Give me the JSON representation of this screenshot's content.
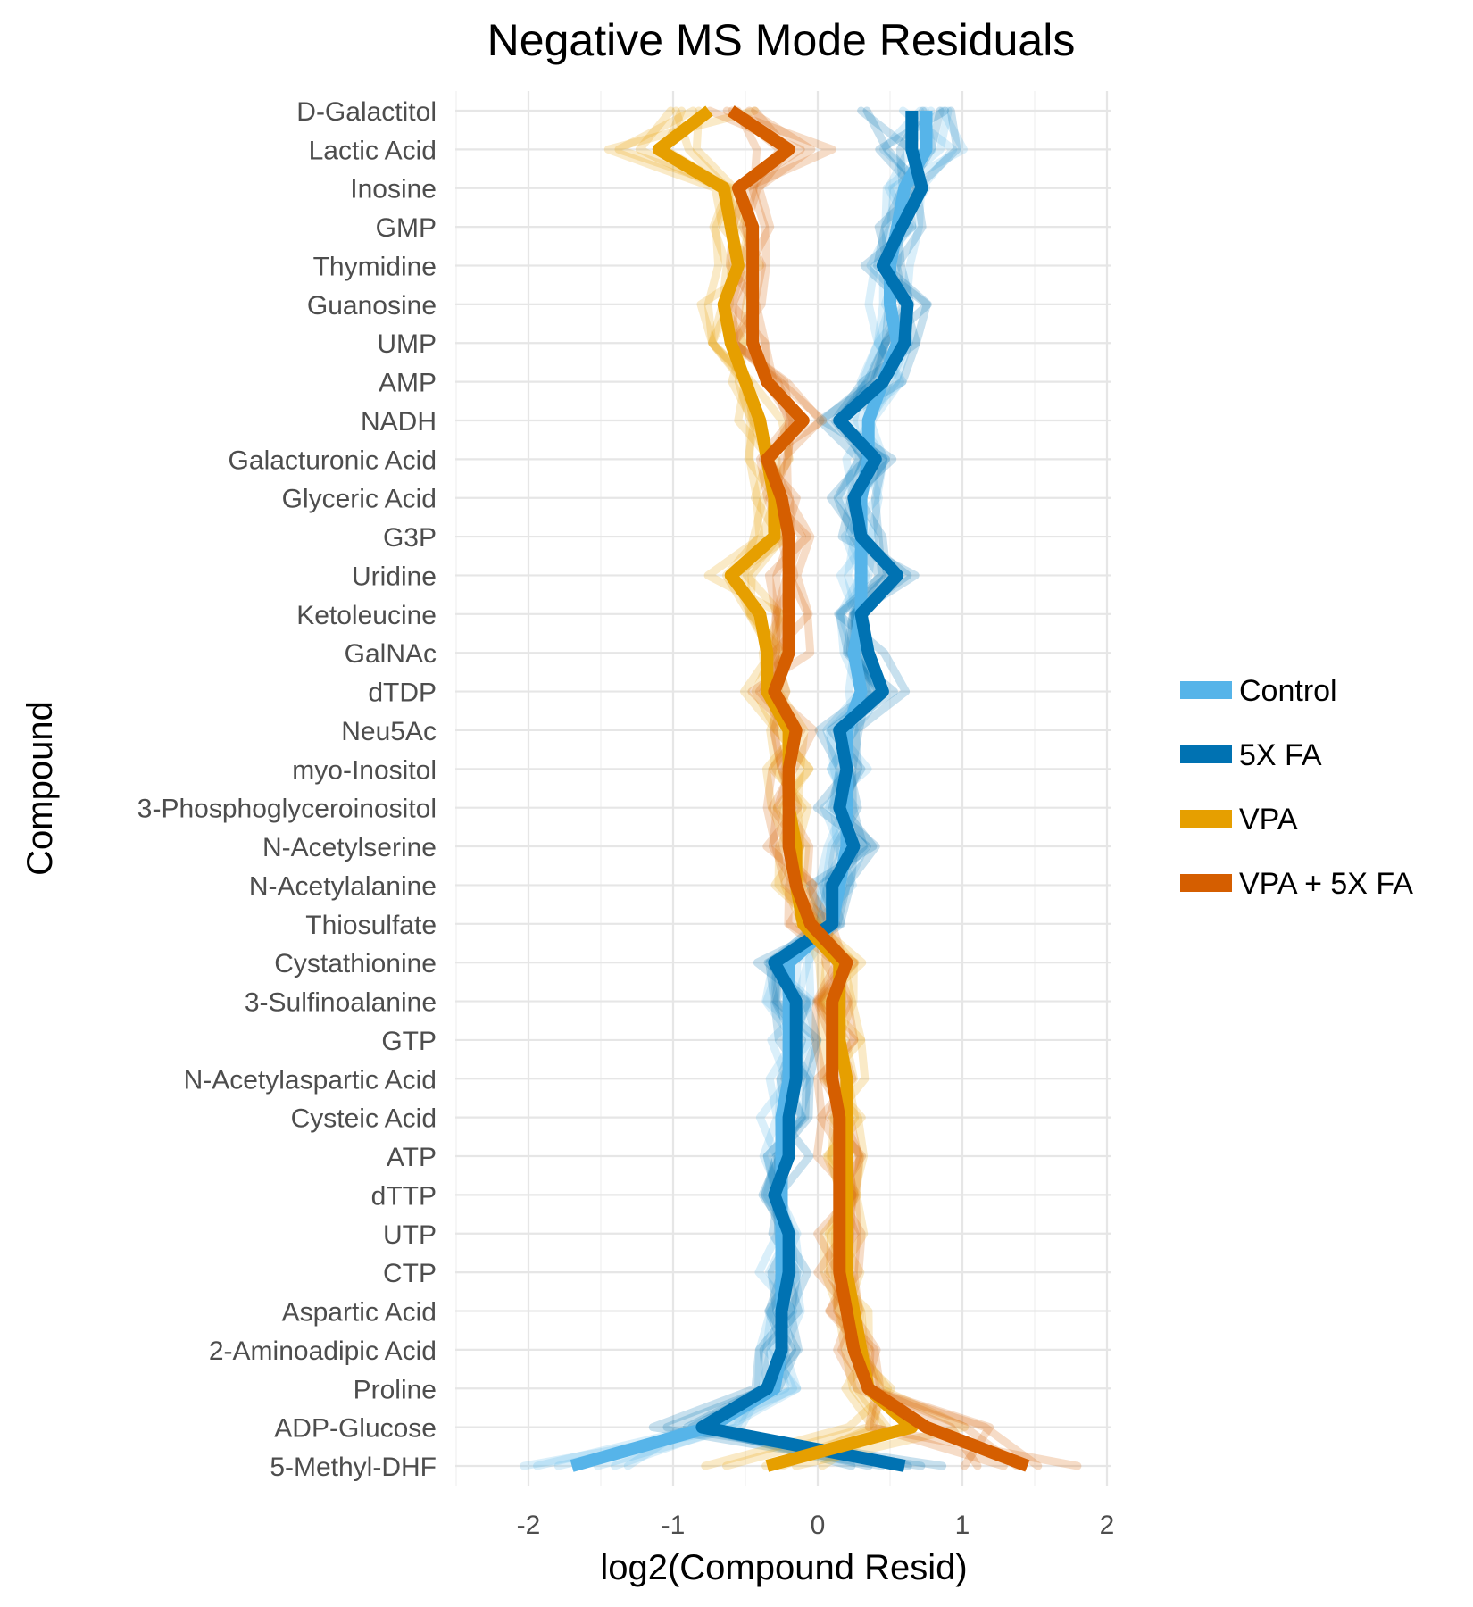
{
  "chart_data": {
    "type": "line",
    "title": "Negative MS Mode Residuals",
    "xlabel": "log2(Compound Resid)",
    "ylabel": "Compound",
    "xlim": [
      -2.5,
      2.0
    ],
    "xticks": [
      -2,
      -1,
      0,
      1,
      2
    ],
    "grid": true,
    "legend_position": "right",
    "orientation": "horizontal",
    "compounds": [
      "D-Galactitol",
      "Lactic Acid",
      "Inosine",
      "GMP",
      "Thymidine",
      "Guanosine",
      "UMP",
      "AMP",
      "NADH",
      "Galacturonic Acid",
      "Glyceric Acid",
      "G3P",
      "Uridine",
      "Ketoleucine",
      "GalNAc",
      "dTDP",
      "Neu5Ac",
      "myo-Inositol",
      "3-Phosphoglyceroinositol",
      "N-Acetylserine",
      "N-Acetylalanine",
      "Thiosulfate",
      "Cystathionine",
      "3-Sulfinoalanine",
      "GTP",
      "N-Acetylaspartic Acid",
      "Cysteic Acid",
      "ATP",
      "dTTP",
      "UTP",
      "CTP",
      "Aspartic Acid",
      "2-Aminoadipic Acid",
      "Proline",
      "ADP-Glucose",
      "5-Methyl-DHF"
    ],
    "series": [
      {
        "name": "Control",
        "color": "#56B4E9",
        "values": [
          0.75,
          0.75,
          0.6,
          0.55,
          0.5,
          0.5,
          0.55,
          0.45,
          0.35,
          0.35,
          0.3,
          0.3,
          0.3,
          0.3,
          0.25,
          0.3,
          0.2,
          0.2,
          0.2,
          0.2,
          0.15,
          0.1,
          -0.2,
          -0.2,
          -0.2,
          -0.2,
          -0.25,
          -0.25,
          -0.25,
          -0.25,
          -0.25,
          -0.25,
          -0.25,
          -0.3,
          -0.75,
          -1.7
        ]
      },
      {
        "name": "5X FA",
        "color": "#0072B2",
        "values": [
          0.65,
          0.65,
          0.72,
          0.58,
          0.45,
          0.62,
          0.6,
          0.45,
          0.15,
          0.4,
          0.25,
          0.3,
          0.55,
          0.3,
          0.35,
          0.45,
          0.15,
          0.2,
          0.15,
          0.25,
          0.1,
          0.1,
          -0.3,
          -0.15,
          -0.15,
          -0.15,
          -0.2,
          -0.2,
          -0.3,
          -0.2,
          -0.2,
          -0.25,
          -0.25,
          -0.35,
          -0.8,
          0.6
        ]
      },
      {
        "name": "VPA",
        "color": "#E69F00",
        "values": [
          -0.75,
          -1.1,
          -0.65,
          -0.6,
          -0.55,
          -0.65,
          -0.6,
          -0.5,
          -0.4,
          -0.35,
          -0.3,
          -0.3,
          -0.6,
          -0.4,
          -0.35,
          -0.35,
          -0.2,
          -0.2,
          -0.2,
          -0.15,
          -0.15,
          -0.1,
          0.15,
          0.15,
          0.15,
          0.2,
          0.2,
          0.2,
          0.2,
          0.2,
          0.2,
          0.25,
          0.3,
          0.35,
          0.65,
          -0.35
        ]
      },
      {
        "name": "VPA + 5X FA",
        "color": "#D55E00",
        "values": [
          -0.6,
          -0.2,
          -0.55,
          -0.45,
          -0.45,
          -0.45,
          -0.45,
          -0.35,
          -0.1,
          -0.35,
          -0.25,
          -0.2,
          -0.2,
          -0.2,
          -0.2,
          -0.3,
          -0.15,
          -0.2,
          -0.2,
          -0.2,
          -0.15,
          -0.05,
          0.2,
          0.1,
          0.1,
          0.1,
          0.15,
          0.15,
          0.15,
          0.15,
          0.15,
          0.2,
          0.25,
          0.35,
          0.75,
          1.45
        ]
      }
    ]
  }
}
